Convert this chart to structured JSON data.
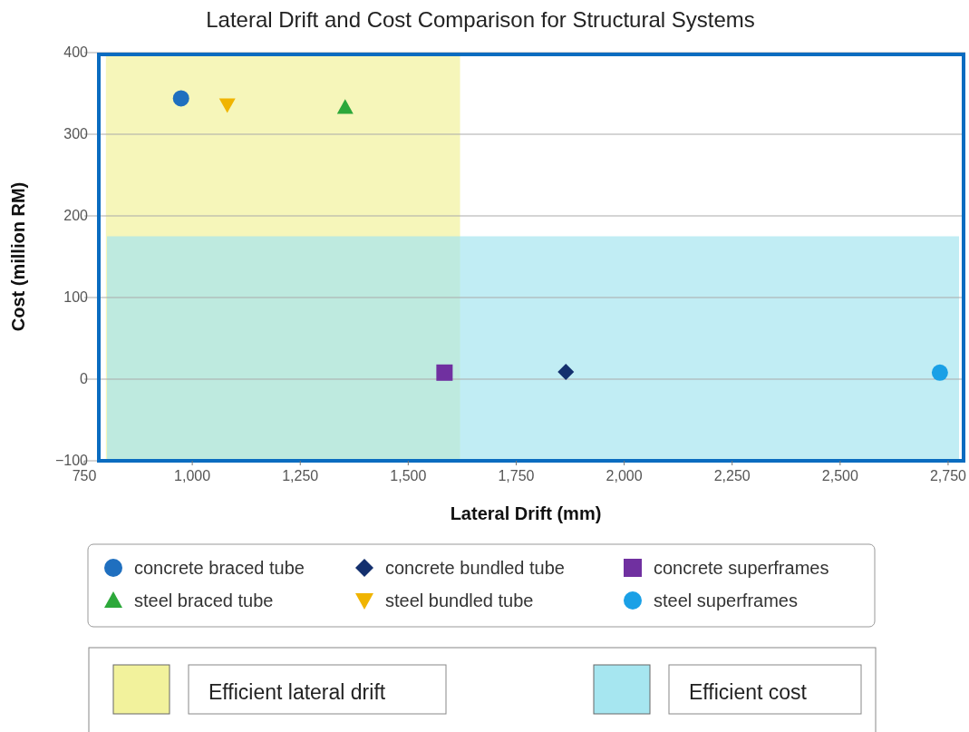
{
  "chart_data": {
    "type": "scatter",
    "title": "Lateral Drift and Cost Comparison for Structural Systems",
    "xlabel": "Lateral Drift (mm)",
    "ylabel": "Cost (million RM)",
    "xlim": [
      750,
      2790
    ],
    "xticks": [
      {
        "value": 750,
        "label": "750"
      },
      {
        "value": 1000,
        "label": "1,000"
      },
      {
        "value": 1250,
        "label": "1,250"
      },
      {
        "value": 1500,
        "label": "1,500"
      },
      {
        "value": 1750,
        "label": "1,750"
      },
      {
        "value": 2000,
        "label": "2,000"
      },
      {
        "value": 2250,
        "label": "2,250"
      },
      {
        "value": 2500,
        "label": "2,500"
      },
      {
        "value": 2750,
        "label": "2,750"
      }
    ],
    "ylim": [
      -100,
      400
    ],
    "yticks": [
      {
        "value": -100,
        "label": "−100"
      },
      0,
      100,
      200,
      300,
      400
    ],
    "grid": "y",
    "legend": "bottom",
    "bands": [
      {
        "axis": "x",
        "from": 800,
        "to": 1620,
        "label": "Efficient lateral drift",
        "color": "#f2f29c"
      },
      {
        "axis": "y",
        "from": -100,
        "to": 175,
        "label": "Efficient cost",
        "color": "#a6e6f0"
      }
    ],
    "series": [
      {
        "name": "concrete braced tube",
        "color": "#1f6fbf",
        "marker": "circle",
        "x": [
          974
        ],
        "values": [
          344
        ]
      },
      {
        "name": "concrete bundled tube",
        "color": "#14306e",
        "marker": "diamond",
        "x": [
          1865
        ],
        "values": [
          9
        ]
      },
      {
        "name": "concrete superframes",
        "color": "#7030a0",
        "marker": "square",
        "x": [
          1584
        ],
        "values": [
          8
        ]
      },
      {
        "name": "steel braced tube",
        "color": "#2ca83a",
        "marker": "triangle",
        "x": [
          1354
        ],
        "values": [
          333
        ]
      },
      {
        "name": "steel bundled tube",
        "color": "#f0b400",
        "marker": "triangle-down",
        "x": [
          1081
        ],
        "values": [
          336
        ]
      },
      {
        "name": "steel superframes",
        "color": "#1aa0e6",
        "marker": "circle",
        "x": [
          2731
        ],
        "values": [
          8
        ]
      }
    ]
  }
}
